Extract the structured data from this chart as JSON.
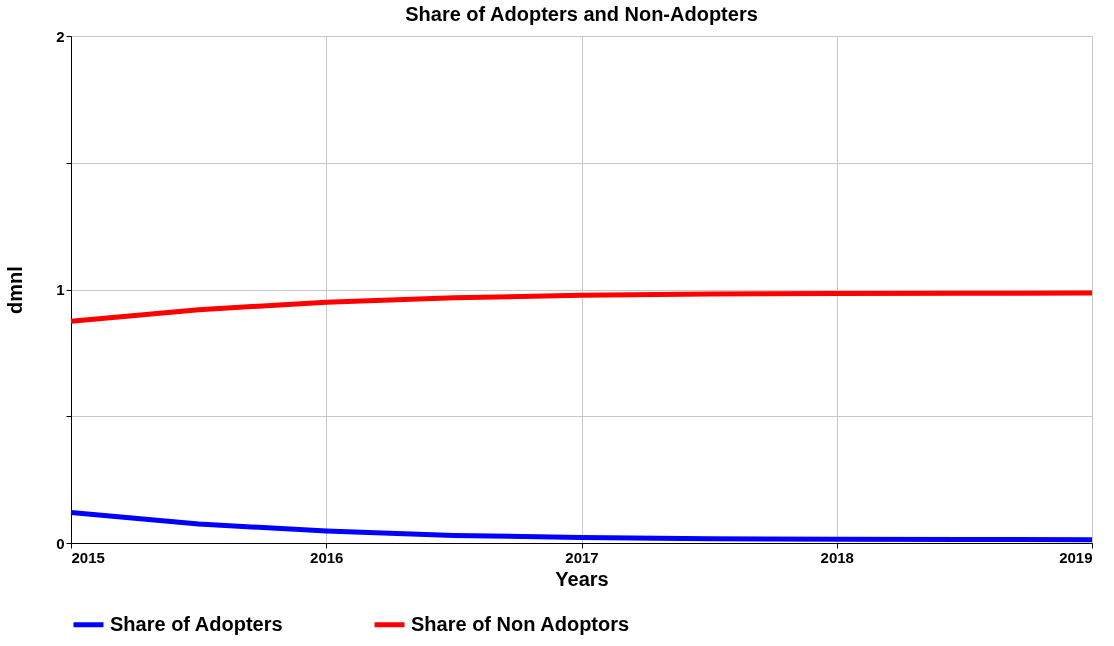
{
  "chart_data": {
    "type": "line",
    "title": "Share of Adopters and Non-Adopters",
    "xlabel": "Years",
    "ylabel": "dmnl",
    "x": [
      2015,
      2015.5,
      2016,
      2016.5,
      2017,
      2017.5,
      2018,
      2018.5,
      2019
    ],
    "series": [
      {
        "name": "Share of Adopters",
        "color": "#0000ff",
        "values": [
          0.12,
          0.075,
          0.047,
          0.03,
          0.022,
          0.017,
          0.015,
          0.014,
          0.013
        ]
      },
      {
        "name": "Share of Non Adoptors",
        "color": "#ff0000",
        "values": [
          0.875,
          0.92,
          0.95,
          0.967,
          0.977,
          0.982,
          0.984,
          0.985,
          0.986
        ]
      }
    ],
    "xlim": [
      2015,
      2019
    ],
    "xticks": [
      2015,
      2016,
      2017,
      2018,
      2019
    ],
    "ylim": [
      0,
      2
    ],
    "yticks": [
      0,
      {
        "value": 0.5,
        "label": null
      },
      1,
      {
        "value": 1.5,
        "label": null
      },
      2
    ],
    "grid": true,
    "legend": "bottom",
    "marker": "none",
    "line_style": "solid"
  }
}
